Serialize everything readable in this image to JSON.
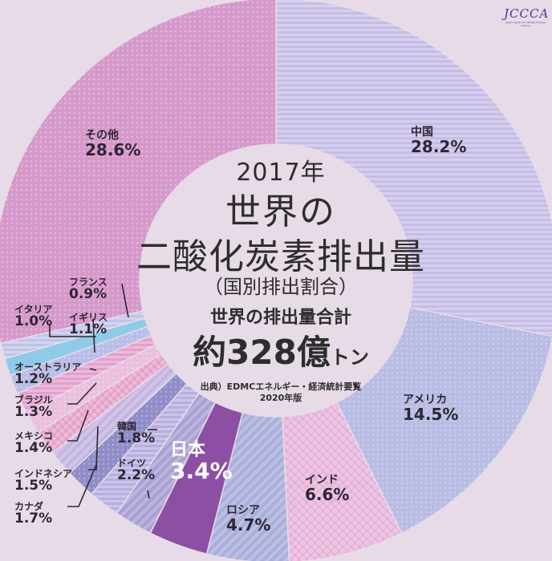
{
  "logo": {
    "text": "JCCCA",
    "subtext": "Japan Center for Climate Change Actions"
  },
  "center": {
    "year": "2017年",
    "title_line1": "世界の",
    "title_line2": "二酸化炭素排出量",
    "subtitle": "（国別排出割合）",
    "total_label": "世界の排出量合計",
    "total_prefix": "約",
    "total_value": "328億",
    "total_unit": "トン",
    "source_line1": "出典）EDMCエネルギー・経済統計要覧",
    "source_line2": "2020年版"
  },
  "chart_data": {
    "type": "pie",
    "donut": true,
    "title": "世界の二酸化炭素排出量",
    "categories": [
      "中国",
      "アメリカ",
      "インド",
      "ロシア",
      "日本",
      "ドイツ",
      "韓国",
      "カナダ",
      "インドネシア",
      "メキシコ",
      "ブラジル",
      "オーストラリア",
      "イギリス",
      "イタリア",
      "フランス",
      "その他"
    ],
    "values": [
      28.2,
      14.5,
      6.6,
      4.7,
      3.4,
      2.2,
      1.8,
      1.7,
      1.5,
      1.4,
      1.3,
      1.2,
      1.1,
      1.0,
      0.9,
      28.6
    ],
    "value_labels": [
      "28.2%",
      "14.5%",
      "6.6%",
      "4.7%",
      "3.4%",
      "2.2%",
      "1.8%",
      "1.7%",
      "1.5%",
      "1.4%",
      "1.3%",
      "1.2%",
      "1.1%",
      "1.0%",
      "0.9%",
      "28.6%"
    ],
    "colors": [
      "#c6bde6",
      "#b9bce3",
      "#e6b3d8",
      "#a9aedb",
      "#8c4fa3",
      "#a8a0d3",
      "#b7aee0",
      "#8f8ec8",
      "#c3b5df",
      "#e5a3c9",
      "#e9c0de",
      "#e3a0cc",
      "#b9bde7",
      "#8fcbe9",
      "#bfc3e8",
      "#d699cb"
    ]
  }
}
